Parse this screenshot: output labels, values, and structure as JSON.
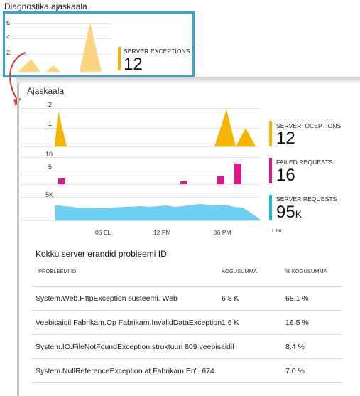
{
  "diagnostics_tile": {
    "title": "Diagnostika ajaskaala",
    "y_ticks": [
      "6",
      "4",
      "2"
    ],
    "metric": {
      "label": "SERVER EXCEPTIONS",
      "value": "12",
      "color": "#f7b500"
    },
    "border_color": "#33a3dc"
  },
  "timeline": {
    "title": "Ajaskaala",
    "x_labels": [
      "06 EL",
      "12 PM",
      "06 PM",
      "L 06"
    ],
    "panels": [
      {
        "y_ticks": [
          "2",
          "1"
        ],
        "metric": {
          "label": "SERVERI OCEPTIONS",
          "value": "12",
          "unit": "",
          "color": "#f7b500"
        }
      },
      {
        "y_ticks": [
          "10",
          "5"
        ],
        "metric": {
          "label": "FAILED REQUESTS",
          "value": "16",
          "unit": "",
          "color": "#e0168a"
        }
      },
      {
        "y_ticks": [
          "5K"
        ],
        "metric": {
          "label": "SERVER REQUESTS",
          "value": "95",
          "unit": "K",
          "color": "#1ab9ec"
        }
      }
    ]
  },
  "problems_table": {
    "title": "Kokku server erandid probleemi ID",
    "headers": {
      "problem_id": "PROBLEEMI ID",
      "total": "KOGUSUMMA",
      "percent": "% KOGUSUMMA"
    },
    "rows": [
      {
        "problem_id": "System.Web.HttpException süsteemi. Web",
        "total": "6.8 K",
        "percent": "68.1 %"
      },
      {
        "problem_id": "Veebisaidil Fabrikam.Op Fabrikam.InvalidDataException",
        "total": "1.6 K",
        "percent": "16.5 %"
      },
      {
        "problem_id": "System.IO.FileNotFoundException struktuuri 809 veebisaidil",
        "total": "",
        "percent": "8.4 %"
      },
      {
        "problem_id": "System.NullReferenceException at Fabrikam.En\". 674",
        "total": "",
        "percent": "7.0 %"
      }
    ]
  }
}
